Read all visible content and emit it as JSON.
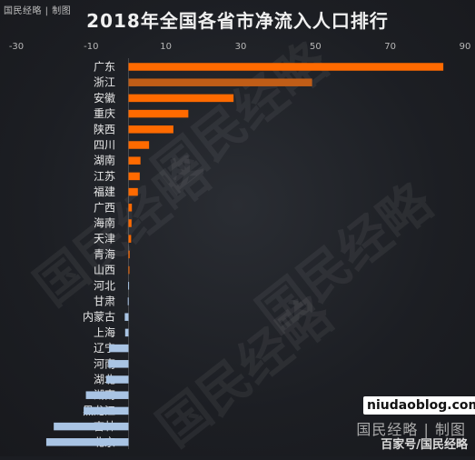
{
  "header": {
    "credit": "国民经略 | 制图",
    "title": "2018年全国各省市净流入人口排行"
  },
  "watermark": {
    "text": "国民经略"
  },
  "footer": {
    "credit": "国民经略 | 制图",
    "source": "百家号/国民经略",
    "site": "niudaoblog.com"
  },
  "colors": {
    "orange": "#ff6a00",
    "brown": "#c05d17",
    "blue": "#a9c4e4",
    "axis_text": "#b8b8b8",
    "label_text": "#e8e8e8"
  },
  "chart_data": {
    "type": "bar",
    "orientation": "horizontal",
    "title": "2018年全国各省市净流入人口排行",
    "xlim": [
      -30,
      90
    ],
    "xticks": [
      -30,
      -10,
      10,
      30,
      50,
      70,
      90
    ],
    "categories": [
      "广东",
      "浙江",
      "安徽",
      "重庆",
      "陕西",
      "四川",
      "湖南",
      "江苏",
      "福建",
      "广西",
      "海南",
      "天津",
      "青海",
      "山西",
      "河北",
      "甘肃",
      "内蒙古",
      "上海",
      "辽宁",
      "河南",
      "湖北",
      "湖南",
      "黑龙江",
      "吉林",
      "北京"
    ],
    "values": [
      84.2,
      49.1,
      28.1,
      16.0,
      12.0,
      5.5,
      3.2,
      3.0,
      2.5,
      0.9,
      0.8,
      0.7,
      0.3,
      0.2,
      -0.1,
      -0.2,
      -1.0,
      -0.9,
      -5.2,
      -5.4,
      -6.0,
      -11.4,
      -12.0,
      -20.0,
      -22.0
    ],
    "grid": true,
    "legend": "none"
  }
}
